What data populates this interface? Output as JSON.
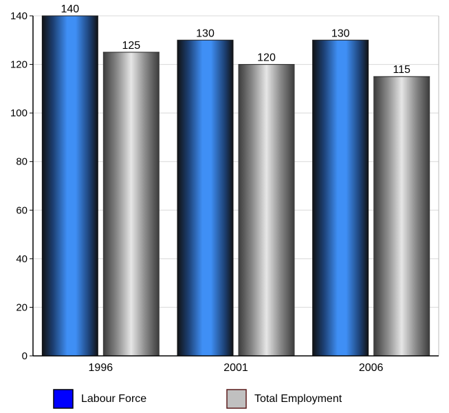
{
  "chart_data": {
    "type": "bar",
    "categories": [
      "1996",
      "2001",
      "2006"
    ],
    "series": [
      {
        "name": "Labour Force",
        "values": [
          140,
          130,
          130
        ],
        "color": "#3f8ff5",
        "legend_color": "#0000ff"
      },
      {
        "name": "Total Employment",
        "values": [
          125,
          120,
          115
        ],
        "color": "#dcdcdc",
        "legend_color": "#c0c0c0"
      }
    ],
    "ylim": [
      0,
      140
    ],
    "yticks": [
      "0",
      "20",
      "40",
      "60",
      "80",
      "100",
      "120",
      "140"
    ],
    "grid": true,
    "legend_position": "bottom",
    "data_labels": true
  }
}
